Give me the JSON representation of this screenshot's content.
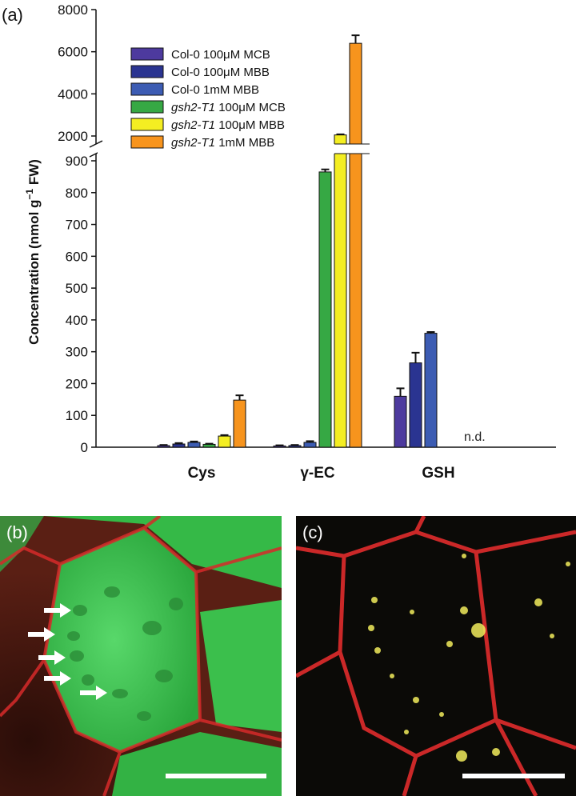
{
  "panels": {
    "a": "(a)",
    "b": "(b)",
    "c": "(c)"
  },
  "chart_data": {
    "type": "bar",
    "title": "",
    "xlabel": "",
    "ylabel_main": "Concentration (nmol g",
    "ylabel_sup": "−1",
    "ylabel_end": " FW)",
    "axis_break": true,
    "ylim_lower": [
      0,
      900
    ],
    "ylim_upper": [
      2000,
      8000
    ],
    "yticks_lower": [
      "0",
      "100",
      "200",
      "300",
      "400",
      "500",
      "600",
      "700",
      "800",
      "900"
    ],
    "yticks_upper": [
      "2000",
      "4000",
      "6000",
      "8000"
    ],
    "categories": [
      "Cys",
      "γ-EC",
      "GSH"
    ],
    "series": [
      {
        "name": "Col-0 100μM MCB",
        "name_parts": [
          [
            "Col-0 100",
            false
          ],
          [
            "μ",
            false
          ],
          [
            "M MCB",
            false
          ]
        ],
        "color": "#4d3a9e",
        "values": [
          5,
          4,
          160
        ],
        "errors": [
          2,
          2,
          25
        ]
      },
      {
        "name": "Col-0 100μM MBB",
        "name_parts": [
          [
            "Col-0 100",
            false
          ],
          [
            "μ",
            false
          ],
          [
            "M MBB",
            false
          ]
        ],
        "color": "#2a3491",
        "values": [
          10,
          5,
          265
        ],
        "errors": [
          3,
          2,
          32
        ]
      },
      {
        "name": "Col-0 1mM MBB",
        "name_parts": [
          [
            "Col-0 1m",
            false
          ],
          [
            "M",
            false
          ],
          [
            " MBB",
            false
          ]
        ],
        "color": "#3c5cb3",
        "values": [
          15,
          15,
          358
        ],
        "errors": [
          3,
          4,
          4
        ]
      },
      {
        "name": "gsh2-T1 100μM MCB",
        "name_parts": [
          [
            "gsh2-T1",
            true
          ],
          [
            " 100",
            false
          ],
          [
            "μ",
            false
          ],
          [
            "M MCB",
            false
          ]
        ],
        "color": "#36a844",
        "values": [
          9,
          865,
          null
        ],
        "errors": [
          2,
          8,
          null
        ]
      },
      {
        "name": "gsh2-T1 100μM MBB",
        "name_parts": [
          [
            "gsh2-T1",
            true
          ],
          [
            " 100",
            false
          ],
          [
            "μ",
            false
          ],
          [
            "M MBB",
            false
          ]
        ],
        "color": "#f4ee22",
        "values": [
          35,
          2050,
          null
        ],
        "errors": [
          3,
          30,
          null
        ]
      },
      {
        "name": "gsh2-T1 1mM MBB",
        "name_parts": [
          [
            "gsh2-T1",
            true
          ],
          [
            " 1m",
            false
          ],
          [
            "M",
            false
          ],
          [
            " MBB",
            false
          ]
        ],
        "color": "#f7941d",
        "values": [
          148,
          6400,
          null
        ],
        "errors": [
          15,
          380,
          null
        ]
      }
    ],
    "annotations": [
      {
        "category": "GSH",
        "text": "n.d."
      }
    ],
    "legend_position": "top-left",
    "grid": false
  },
  "colors": {
    "cell_wall": "#d62a2a",
    "cytoplasm_green": "#3cc24a",
    "granule_yellow": "#f2ec5c",
    "arrow": "#ffffff",
    "scale_bar": "#ffffff"
  }
}
